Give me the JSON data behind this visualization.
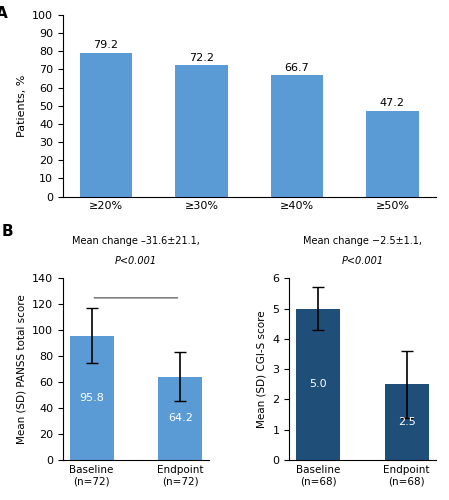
{
  "panel_A": {
    "categories": [
      "≥20%",
      "≥30%",
      "≥40%",
      "≥50%"
    ],
    "values": [
      79.2,
      72.2,
      66.7,
      47.2
    ],
    "bar_color": "#5b9bd5",
    "ylabel": "Patients, %",
    "ylim": [
      0,
      100
    ],
    "yticks": [
      0,
      10,
      20,
      30,
      40,
      50,
      60,
      70,
      80,
      90,
      100
    ]
  },
  "panel_B_left": {
    "categories": [
      "Baseline\n(n=72)",
      "Endpoint\n(n=72)"
    ],
    "values": [
      95.8,
      64.2
    ],
    "errors": [
      21.1,
      19.0
    ],
    "bar_color": "#5b9bd5",
    "ylabel": "Mean (SD) PANSS total score",
    "ylim": [
      0,
      140
    ],
    "yticks": [
      0,
      20,
      40,
      60,
      80,
      100,
      120,
      140
    ],
    "title_line1": "Mean change –31.6±21.1,",
    "title_line2": "P<0.001",
    "labels": [
      "95.8",
      "64.2"
    ]
  },
  "panel_B_right": {
    "categories": [
      "Baseline\n(n=68)",
      "Endpoint\n(n=68)"
    ],
    "values": [
      5.0,
      2.5
    ],
    "errors": [
      0.7,
      1.1
    ],
    "bar_color": "#1f4e79",
    "ylabel": "Mean (SD) CGI-S score",
    "ylim": [
      0.0,
      6.0
    ],
    "yticks": [
      0.0,
      1.0,
      2.0,
      3.0,
      4.0,
      5.0,
      6.0
    ],
    "title_line1": "Mean change −2.5±1.1,",
    "title_line2": "P<0.001",
    "labels": [
      "5.0",
      "2.5"
    ]
  }
}
